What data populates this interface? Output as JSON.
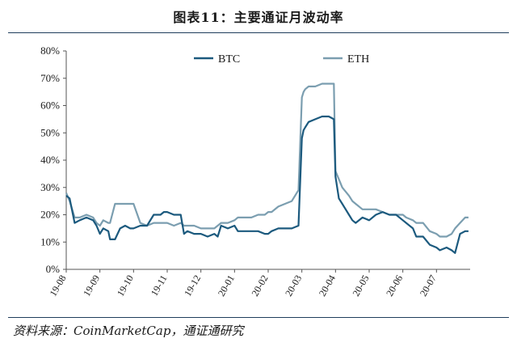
{
  "title": "图表11：主要通证月波动率",
  "source": "资料来源：CoinMarketCap，通证通研究",
  "chart_data": {
    "type": "line",
    "title": "图表11：主要通证月波动率",
    "xlabel": "",
    "ylabel": "",
    "ylim": [
      0,
      80
    ],
    "y_ticks": [
      "0%",
      "10%",
      "20%",
      "30%",
      "40%",
      "50%",
      "60%",
      "70%",
      "80%"
    ],
    "x_ticks": [
      "19-08",
      "19-09",
      "19-10",
      "19-11",
      "19-12",
      "20-01",
      "20-02",
      "20-03",
      "20-04",
      "20-05",
      "20-06",
      "20-07"
    ],
    "x_range": [
      0,
      12
    ],
    "grid": false,
    "legend": "top",
    "series": [
      {
        "name": "BTC",
        "color": "#1c5a7e",
        "x": [
          0.0,
          0.1,
          0.25,
          0.4,
          0.6,
          0.8,
          0.9,
          1.0,
          1.1,
          1.25,
          1.3,
          1.45,
          1.6,
          1.75,
          1.9,
          2.0,
          2.2,
          2.4,
          2.6,
          2.8,
          2.9,
          3.0,
          3.2,
          3.4,
          3.5,
          3.6,
          3.8,
          4.0,
          4.2,
          4.4,
          4.5,
          4.6,
          4.8,
          5.0,
          5.1,
          5.3,
          5.5,
          5.7,
          5.9,
          6.0,
          6.1,
          6.3,
          6.5,
          6.7,
          6.9,
          7.0,
          7.05,
          7.1,
          7.2,
          7.4,
          7.6,
          7.8,
          7.95,
          8.0,
          8.1,
          8.2,
          8.4,
          8.5,
          8.6,
          8.8,
          9.0,
          9.2,
          9.4,
          9.6,
          9.8,
          10.0,
          10.1,
          10.3,
          10.4,
          10.6,
          10.8,
          11.0,
          11.1,
          11.3,
          11.45,
          11.55,
          11.7,
          11.85,
          11.95
        ],
        "values": [
          27,
          26,
          17,
          18,
          19,
          18,
          16,
          13,
          15,
          14,
          11,
          11,
          15,
          16,
          15,
          15,
          16,
          16,
          20,
          20,
          21,
          21,
          20,
          20,
          13,
          14,
          13,
          13,
          12,
          13,
          12,
          16,
          15,
          16,
          14,
          14,
          14,
          14,
          13,
          13,
          14,
          15,
          15,
          15,
          16,
          48,
          51,
          52,
          54,
          55,
          56,
          56,
          55,
          34,
          26,
          24,
          20,
          18,
          17,
          19,
          18,
          20,
          21,
          20,
          20,
          18,
          17,
          15,
          12,
          12,
          9,
          8,
          7,
          8,
          7,
          6,
          13,
          14,
          14
        ]
      },
      {
        "name": "ETH",
        "color": "#7b9eb0",
        "x": [
          0.0,
          0.1,
          0.25,
          0.4,
          0.6,
          0.8,
          0.9,
          1.0,
          1.1,
          1.25,
          1.3,
          1.45,
          1.6,
          1.75,
          1.9,
          2.0,
          2.2,
          2.4,
          2.6,
          2.8,
          2.9,
          3.0,
          3.2,
          3.4,
          3.5,
          3.6,
          3.8,
          4.0,
          4.2,
          4.4,
          4.5,
          4.6,
          4.8,
          5.0,
          5.1,
          5.3,
          5.5,
          5.7,
          5.9,
          6.0,
          6.1,
          6.3,
          6.5,
          6.7,
          6.9,
          7.0,
          7.05,
          7.1,
          7.2,
          7.4,
          7.6,
          7.8,
          7.95,
          8.0,
          8.1,
          8.2,
          8.4,
          8.5,
          8.6,
          8.8,
          9.0,
          9.2,
          9.4,
          9.6,
          9.8,
          10.0,
          10.1,
          10.3,
          10.4,
          10.6,
          10.8,
          11.0,
          11.1,
          11.3,
          11.45,
          11.55,
          11.7,
          11.85,
          11.95
        ],
        "values": [
          28,
          25,
          19,
          19,
          20,
          19,
          17,
          16,
          18,
          17,
          17,
          24,
          24,
          24,
          24,
          24,
          17,
          16,
          17,
          17,
          17,
          17,
          16,
          17,
          16,
          16,
          16,
          15,
          15,
          15,
          16,
          17,
          17,
          18,
          19,
          19,
          19,
          20,
          20,
          21,
          21,
          23,
          24,
          25,
          29,
          63,
          65,
          66,
          67,
          67,
          68,
          68,
          68,
          36,
          33,
          30,
          27,
          25,
          24,
          22,
          22,
          22,
          21,
          20,
          20,
          20,
          19,
          18,
          17,
          17,
          14,
          13,
          12,
          12,
          13,
          15,
          17,
          19,
          19
        ]
      }
    ]
  }
}
